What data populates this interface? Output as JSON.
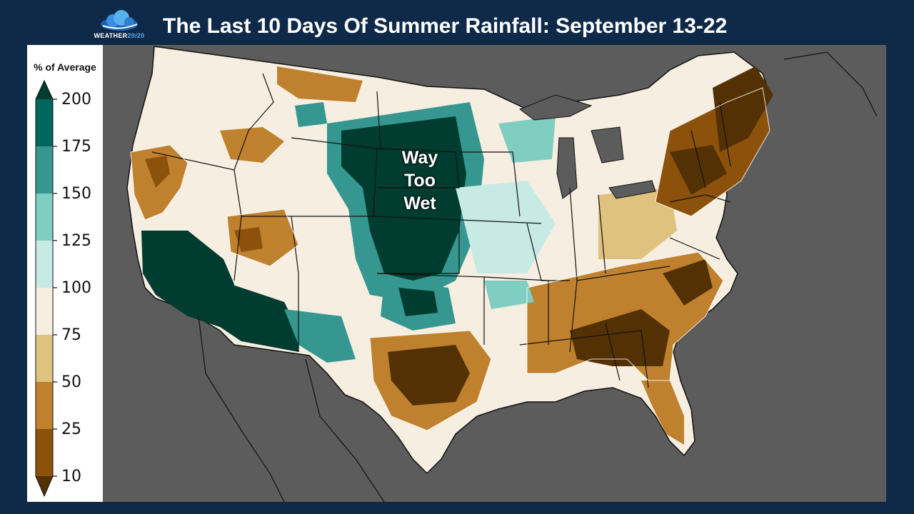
{
  "header": {
    "title": "The Last 10 Days Of Summer Rainfall:  September 13-22",
    "logo_text_main": "WEATHER",
    "logo_text_accent": "20/20"
  },
  "legend": {
    "title": "% of Average",
    "ticks": [
      "200",
      "175",
      "150",
      "125",
      "100",
      "75",
      "50",
      "25",
      "10"
    ],
    "bands": [
      {
        "range": "175-200+",
        "color": "#01665e"
      },
      {
        "range": "150-175",
        "color": "#35978f"
      },
      {
        "range": "125-150",
        "color": "#80cdc1"
      },
      {
        "range": "100-125",
        "color": "#c7eae5"
      },
      {
        "range": "75-100",
        "color": "#f6eee0"
      },
      {
        "range": "50-75",
        "color": "#dfc27d"
      },
      {
        "range": "25-50",
        "color": "#bf812d"
      },
      {
        "range": "10-25",
        "color": "#8c510a"
      }
    ],
    "extend_high_color": "#003c30",
    "extend_low_color": "#543005"
  },
  "annotation": {
    "lines": [
      "Way",
      "Too",
      "Wet"
    ]
  },
  "colors": {
    "background": "#0f2a48",
    "map_background": "#5c5c5c",
    "very_wet": "#003c30",
    "very_dry": "#543005"
  }
}
